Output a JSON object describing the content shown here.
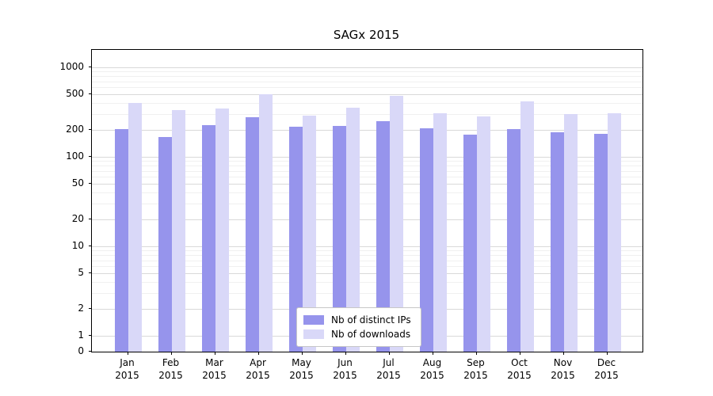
{
  "chart_data": {
    "type": "bar",
    "title": "SAGx 2015",
    "categories": [
      "Jan",
      "Feb",
      "Mar",
      "Apr",
      "May",
      "Jun",
      "Jul",
      "Aug",
      "Sep",
      "Oct",
      "Nov",
      "Dec"
    ],
    "year_label": "2015",
    "series": [
      {
        "name": "Nb of distinct IPs",
        "slug": "distinct-ips",
        "color": "#9694ec",
        "values": [
          205,
          165,
          228,
          278,
          215,
          222,
          248,
          208,
          178,
          203,
          190,
          180
        ]
      },
      {
        "name": "Nb of downloads",
        "slug": "downloads",
        "color": "#d9d8f8",
        "values": [
          400,
          330,
          348,
          505,
          290,
          355,
          478,
          308,
          282,
          415,
          298,
          305
        ]
      }
    ],
    "yscale": "symlog",
    "yticks": [
      0,
      1,
      2,
      5,
      10,
      20,
      50,
      100,
      200,
      500,
      1000
    ],
    "grid_minor": [
      3,
      4,
      6,
      7,
      8,
      9,
      30,
      40,
      60,
      70,
      80,
      90,
      300,
      400,
      600,
      700,
      800,
      900
    ],
    "ylim": [
      0,
      1500
    ],
    "grid": true,
    "legend_position": "lower center"
  }
}
